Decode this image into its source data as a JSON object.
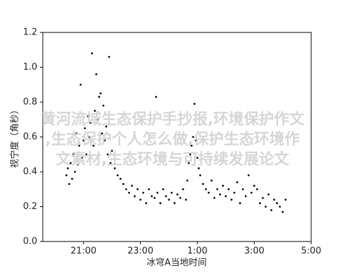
{
  "chart_data": {
    "type": "scatter",
    "xlabel": "冰穹A当地时间",
    "ylabel": "视宁度（角秒）",
    "color": "#000000",
    "x": [
      20.4,
      20.45,
      20.5,
      20.55,
      20.6,
      20.65,
      20.7,
      20.75,
      20.8,
      20.85,
      20.9,
      20.95,
      21.0,
      21.05,
      21.1,
      21.15,
      21.2,
      21.25,
      21.3,
      21.35,
      21.4,
      21.45,
      21.5,
      21.55,
      21.6,
      21.65,
      21.7,
      21.75,
      21.8,
      21.85,
      21.9,
      21.95,
      22.0,
      22.1,
      22.2,
      22.3,
      22.4,
      22.5,
      22.6,
      22.7,
      22.8,
      22.9,
      23.0,
      23.1,
      23.2,
      23.3,
      23.4,
      23.5,
      23.55,
      23.6,
      23.7,
      23.8,
      23.9,
      24.0,
      24.1,
      24.2,
      24.3,
      24.4,
      24.5,
      24.6,
      24.65,
      24.7,
      24.75,
      24.8,
      24.85,
      24.9,
      24.95,
      25.0,
      25.05,
      25.1,
      25.2,
      25.3,
      25.4,
      25.5,
      25.6,
      25.7,
      25.8,
      25.9,
      26.0,
      26.1,
      26.2,
      26.3,
      26.4,
      26.5,
      26.6,
      26.7,
      26.8,
      26.9,
      27.0,
      27.1,
      27.2,
      27.3,
      27.4,
      27.5,
      27.6,
      27.7,
      27.8,
      27.9,
      28.0,
      28.1
    ],
    "values": [
      0.38,
      0.42,
      0.33,
      0.45,
      0.36,
      0.5,
      0.4,
      0.62,
      0.44,
      0.55,
      0.9,
      0.48,
      0.58,
      0.65,
      0.5,
      0.72,
      0.6,
      0.68,
      1.08,
      0.55,
      0.75,
      0.96,
      0.7,
      0.83,
      0.85,
      0.62,
      0.78,
      0.58,
      0.66,
      0.5,
      1.06,
      0.45,
      0.52,
      0.42,
      0.38,
      0.36,
      0.33,
      0.3,
      0.28,
      0.32,
      0.26,
      0.3,
      0.24,
      0.28,
      0.22,
      0.3,
      0.26,
      0.25,
      0.83,
      0.28,
      0.22,
      0.3,
      0.26,
      0.24,
      0.28,
      0.22,
      0.27,
      0.25,
      0.3,
      0.24,
      0.35,
      0.45,
      0.5,
      0.55,
      0.6,
      0.79,
      0.58,
      0.48,
      0.42,
      0.38,
      0.33,
      0.3,
      0.28,
      0.35,
      0.25,
      0.3,
      0.27,
      0.32,
      0.26,
      0.3,
      0.24,
      0.28,
      0.34,
      0.22,
      0.3,
      0.26,
      0.38,
      0.28,
      0.32,
      0.3,
      0.22,
      0.25,
      0.2,
      0.27,
      0.18,
      0.24,
      0.22,
      0.2,
      0.17,
      0.24
    ],
    "xlim": [
      19.57,
      29
    ],
    "xticks": [
      {
        "value": 21,
        "label": "21:00"
      },
      {
        "value": 23,
        "label": "23:00"
      },
      {
        "value": 25,
        "label": "1:00"
      },
      {
        "value": 27,
        "label": "3:00"
      },
      {
        "value": 29,
        "label": "5:00"
      }
    ],
    "ylim": [
      0,
      1.2
    ],
    "yticks": [
      {
        "value": 0,
        "label": "0.0"
      },
      {
        "value": 0.2,
        "label": "0.2"
      },
      {
        "value": 0.4,
        "label": "0.4"
      },
      {
        "value": 0.6,
        "label": "0.6"
      },
      {
        "value": 0.8,
        "label": "0.8"
      },
      {
        "value": 1.0,
        "label": "1.0"
      },
      {
        "value": 1.2,
        "label": "1.2"
      }
    ],
    "watermark": [
      "黄河流域生态保护手抄报,环境保护作文",
      ",生态保护个人怎么做,保护生态环境作",
      "文素材,生态环境与可持续发展论文"
    ]
  }
}
